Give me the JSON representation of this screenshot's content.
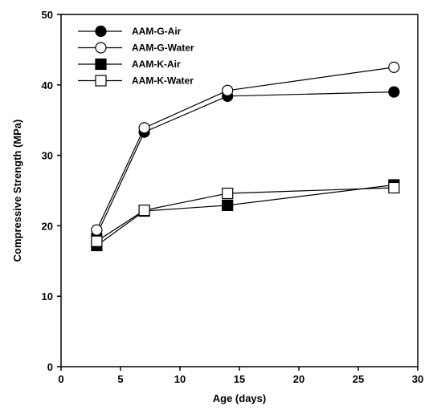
{
  "chart_data": {
    "type": "line",
    "title": "",
    "xlabel": "Age (days)",
    "ylabel": "Compressive Strength (MPa)",
    "xlim": [
      0,
      30
    ],
    "ylim": [
      0,
      50
    ],
    "xticks": [
      0,
      5,
      10,
      15,
      20,
      25,
      30
    ],
    "yticks": [
      0,
      10,
      20,
      30,
      40,
      50
    ],
    "x": [
      3,
      7,
      14,
      28
    ],
    "grid": false,
    "legend_position": "top-left",
    "series": [
      {
        "name": "AAM-G-Air",
        "marker": "circle",
        "filled": true,
        "values": [
          18.7,
          33.3,
          38.4,
          39.0
        ]
      },
      {
        "name": "AAM-G-Water",
        "marker": "circle",
        "filled": false,
        "values": [
          19.4,
          33.9,
          39.2,
          42.5
        ]
      },
      {
        "name": "AAM-K-Air",
        "marker": "square",
        "filled": true,
        "values": [
          17.2,
          22.1,
          22.9,
          25.8
        ]
      },
      {
        "name": "AAM-K-Water",
        "marker": "square",
        "filled": false,
        "values": [
          17.8,
          22.2,
          24.6,
          25.4
        ]
      }
    ]
  }
}
